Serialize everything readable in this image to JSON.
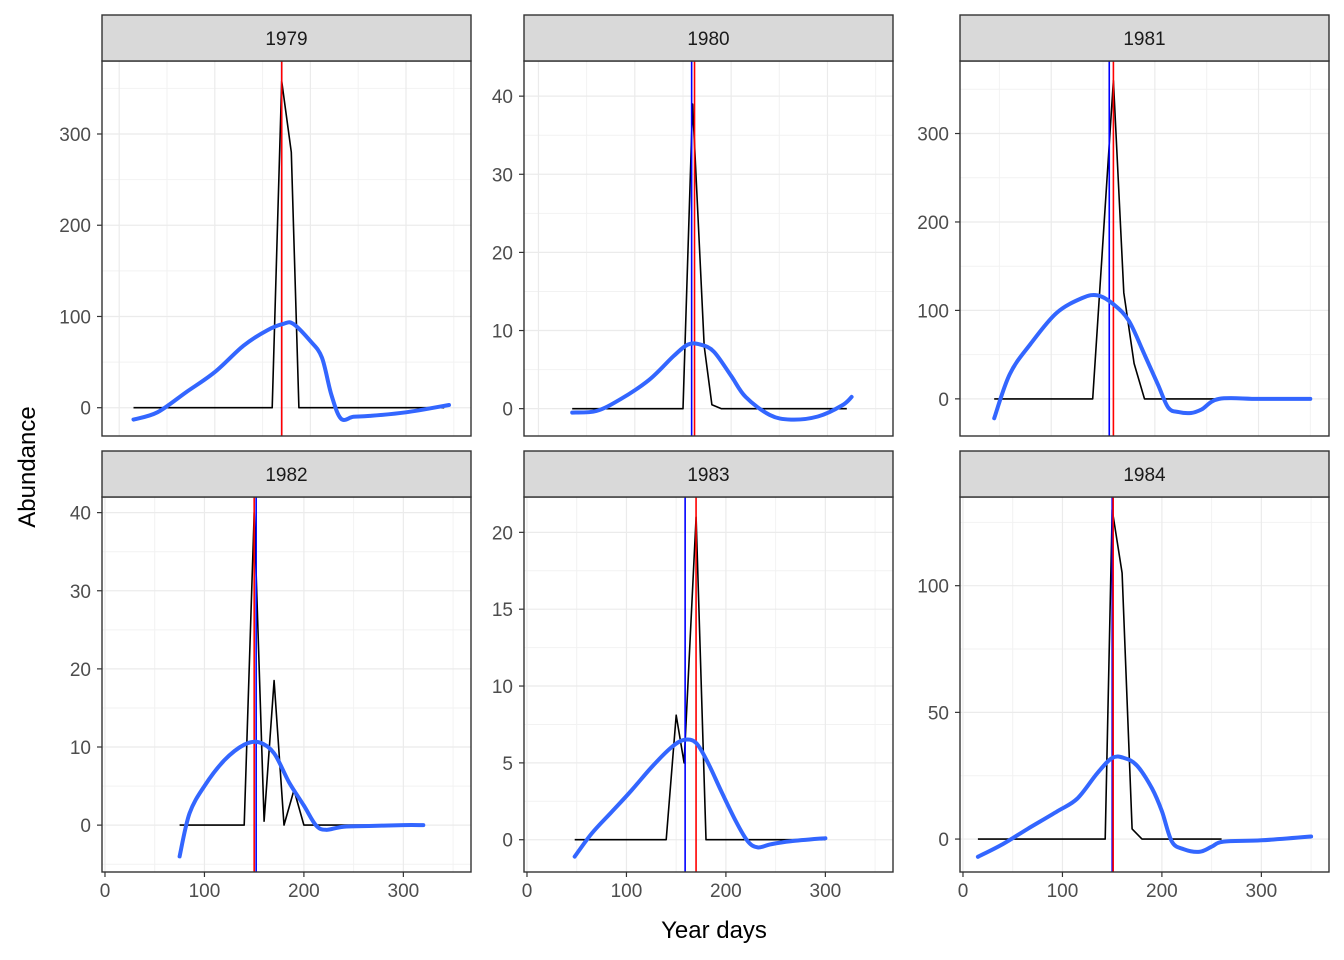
{
  "chart_data": {
    "type": "line",
    "xlabel": "Year days",
    "ylabel": "Abundance",
    "facet_layout": "2 rows x 3 columns",
    "grid": true,
    "colors": {
      "observed": "#000000",
      "smooth": "#3366FF",
      "red_marker": "#FF0000",
      "blue_marker": "#0000FF",
      "strip_fill": "#D9D9D9"
    },
    "panels": [
      {
        "title": "1979",
        "xlim": [
          -18,
          368
        ],
        "ylim": [
          -31,
          380
        ],
        "x_ticks": [
          0,
          100,
          200,
          300
        ],
        "y_ticks": [
          0,
          100,
          200,
          300
        ],
        "vline_red": 170,
        "vline_blue": 170,
        "observed": {
          "x": [
            15,
            160,
            170,
            180,
            188,
            196,
            340
          ],
          "y": [
            0,
            0,
            358,
            280,
            0,
            0,
            0
          ]
        },
        "smooth": {
          "x": [
            15,
            40,
            70,
            100,
            130,
            155,
            172,
            182,
            200,
            212,
            222,
            232,
            245,
            262,
            300,
            345
          ],
          "y": [
            -13,
            -5,
            17,
            39,
            68,
            85,
            92,
            92,
            73,
            55,
            14,
            -12,
            -10,
            -9,
            -5,
            3
          ]
        }
      },
      {
        "title": "1980",
        "xlim": [
          -15,
          368
        ],
        "ylim": [
          -3.5,
          44.5
        ],
        "x_ticks": [
          0,
          100,
          200,
          300
        ],
        "y_ticks": [
          0,
          10,
          20,
          30,
          40
        ],
        "vline_red": 162,
        "vline_blue": 159,
        "observed": {
          "x": [
            35,
            150,
            160,
            172,
            180,
            190,
            320
          ],
          "y": [
            0,
            0,
            39,
            8,
            0.5,
            0,
            0
          ]
        },
        "smooth": {
          "x": [
            35,
            60,
            85,
            115,
            140,
            155,
            168,
            182,
            200,
            215,
            240,
            262,
            290,
            315,
            325
          ],
          "y": [
            -0.5,
            -0.3,
            1.2,
            3.7,
            6.7,
            8.2,
            8.2,
            7.3,
            4.2,
            1.5,
            -0.8,
            -1.4,
            -1.0,
            0.4,
            1.5
          ]
        }
      },
      {
        "title": "1981",
        "xlim": [
          12,
          368
        ],
        "ylim": [
          -42,
          382
        ],
        "x_ticks": [
          100,
          200,
          300
        ],
        "y_ticks": [
          0,
          100,
          200,
          300
        ],
        "vline_red": 160,
        "vline_blue": 156,
        "observed": {
          "x": [
            45,
            140,
            160,
            170,
            180,
            190,
            260
          ],
          "y": [
            0,
            0,
            360,
            120,
            40,
            0,
            0
          ]
        },
        "smooth": {
          "x": [
            45,
            60,
            80,
            105,
            130,
            145,
            160,
            175,
            190,
            203,
            213,
            223,
            235,
            245,
            262,
            300,
            350
          ],
          "y": [
            -22,
            28,
            62,
            97,
            114,
            117,
            107,
            88,
            50,
            16,
            -10,
            -15,
            -16,
            -12,
            0,
            0,
            0
          ]
        }
      },
      {
        "title": "1982",
        "xlim": [
          -3,
          368
        ],
        "ylim": [
          -6,
          42
        ],
        "x_ticks": [
          0,
          100,
          200,
          300
        ],
        "y_ticks": [
          0,
          10,
          20,
          30,
          40
        ],
        "vline_red": 150,
        "vline_blue": 152,
        "observed": {
          "x": [
            75,
            140,
            150,
            160,
            170,
            180,
            190,
            200,
            210,
            320
          ],
          "y": [
            0,
            0,
            40,
            0.5,
            18.5,
            0,
            4.5,
            0,
            0,
            0
          ]
        },
        "smooth": {
          "x": [
            75,
            85,
            100,
            120,
            140,
            155,
            170,
            185,
            200,
            212,
            222,
            240,
            270,
            300,
            320
          ],
          "y": [
            -4,
            1.5,
            5,
            8.3,
            10.3,
            10.6,
            9.2,
            5.5,
            2.5,
            0,
            -0.6,
            -0.2,
            -0.1,
            0,
            0
          ]
        }
      },
      {
        "title": "1983",
        "xlim": [
          -3,
          368
        ],
        "ylim": [
          -2.1,
          22.3
        ],
        "x_ticks": [
          0,
          100,
          200,
          300
        ],
        "y_ticks": [
          0,
          5,
          10,
          15,
          20
        ],
        "vline_red": 170,
        "vline_blue": 159,
        "observed": {
          "x": [
            48,
            140,
            150,
            158,
            170,
            180,
            190,
            300
          ],
          "y": [
            0,
            0,
            8.1,
            5,
            21,
            0,
            0,
            0
          ]
        },
        "smooth": {
          "x": [
            48,
            65,
            85,
            105,
            125,
            145,
            158,
            170,
            182,
            195,
            210,
            222,
            232,
            245,
            265,
            300
          ],
          "y": [
            -1.1,
            0.4,
            1.8,
            3.2,
            4.7,
            6.0,
            6.5,
            6.3,
            5.0,
            3.2,
            1.2,
            -0.1,
            -0.5,
            -0.3,
            -0.1,
            0.1
          ]
        }
      },
      {
        "title": "1984",
        "xlim": [
          -3,
          368
        ],
        "ylim": [
          -13,
          135
        ],
        "x_ticks": [
          0,
          100,
          200,
          300
        ],
        "y_ticks": [
          0,
          50,
          100
        ],
        "vline_red": 151,
        "vline_blue": 150,
        "observed": {
          "x": [
            15,
            143,
            150,
            160,
            170,
            180,
            260
          ],
          "y": [
            0,
            0,
            130,
            105,
            4,
            0,
            0
          ]
        },
        "smooth": {
          "x": [
            15,
            40,
            65,
            95,
            115,
            135,
            150,
            162,
            175,
            190,
            200,
            210,
            222,
            238,
            250,
            262,
            300,
            350
          ],
          "y": [
            -7,
            -2,
            4,
            11,
            16,
            26,
            32,
            32,
            29,
            20,
            11,
            -1,
            -4,
            -5,
            -3,
            -1,
            -0.5,
            1
          ]
        }
      }
    ]
  }
}
